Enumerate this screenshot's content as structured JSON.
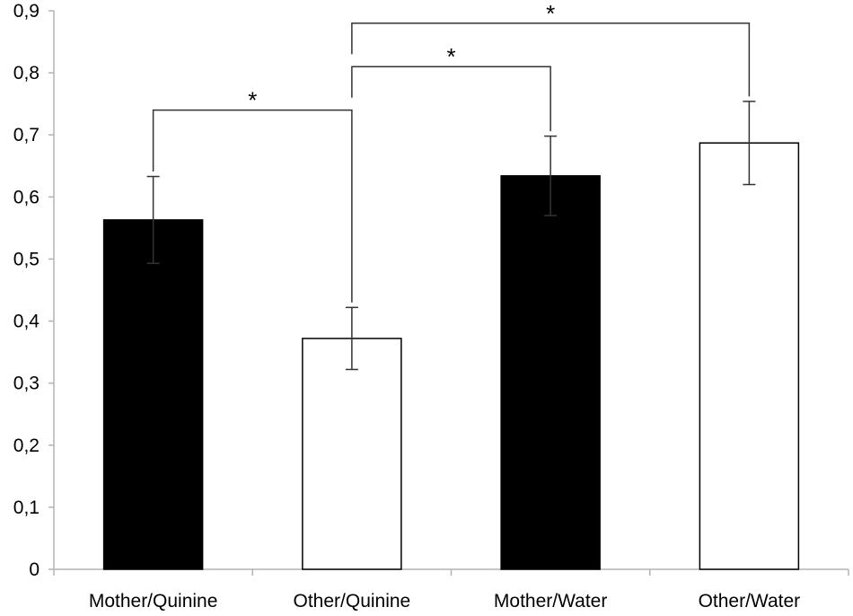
{
  "chart_data": {
    "type": "bar",
    "categories": [
      "Mother/Quinine",
      "Other/Quinine",
      "Mother/Water",
      "Other/Water"
    ],
    "values": [
      0.563,
      0.372,
      0.634,
      0.687
    ],
    "errors": [
      0.07,
      0.05,
      0.064,
      0.067
    ],
    "bar_fills": [
      "#000000",
      "#ffffff",
      "#000000",
      "#ffffff"
    ],
    "title": "",
    "xlabel": "",
    "ylabel": "",
    "ylim": [
      0,
      0.9
    ],
    "yticks": [
      0,
      0.1,
      0.2,
      0.3,
      0.4,
      0.5,
      0.6,
      0.7,
      0.8,
      0.9
    ],
    "ytick_labels": [
      "0",
      "0,1",
      "0,2",
      "0,3",
      "0,4",
      "0,5",
      "0,6",
      "0,7",
      "0,8",
      "0,9"
    ],
    "grid": false,
    "legend": "none",
    "significance": [
      {
        "from": "Mother/Quinine",
        "to": "Other/Quinine",
        "label": "*"
      },
      {
        "from": "Other/Quinine",
        "to": "Mother/Water",
        "label": "*"
      },
      {
        "from": "Other/Quinine",
        "to": "Other/Water",
        "label": "*"
      }
    ]
  }
}
